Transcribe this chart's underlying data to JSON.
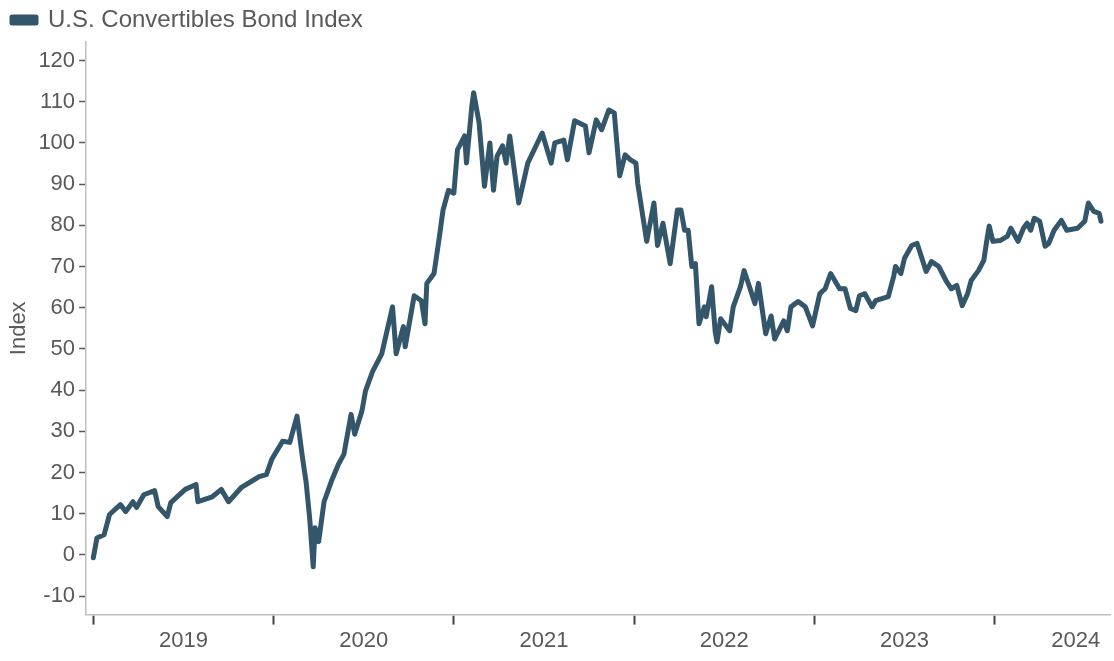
{
  "chart_data": {
    "type": "line",
    "ylabel": "Index",
    "legend": "top left",
    "grid": false,
    "line_style": "solid",
    "marker": "none",
    "xlim": [
      2018.96,
      2024.64
    ],
    "xticks": [
      {
        "value": 2019,
        "label": null
      },
      {
        "value": 2019.5,
        "label": "2019"
      },
      {
        "value": 2020,
        "label": null
      },
      {
        "value": 2020.5,
        "label": "2020"
      },
      {
        "value": 2021,
        "label": null
      },
      {
        "value": 2021.5,
        "label": "2021"
      },
      {
        "value": 2022,
        "label": null
      },
      {
        "value": 2022.5,
        "label": "2022"
      },
      {
        "value": 2023,
        "label": null
      },
      {
        "value": 2023.5,
        "label": "2023"
      },
      {
        "value": 2024,
        "label": null
      },
      {
        "value": 2024.45,
        "label": "2024"
      }
    ],
    "ylim": [
      -14.5,
      124.5
    ],
    "yticks": [
      -10,
      0,
      10,
      20,
      30,
      40,
      50,
      60,
      70,
      80,
      90,
      100,
      110,
      120
    ],
    "series": [
      {
        "name": "U.S. Convertibles Bond Index",
        "color": "#34566b",
        "x": [
          2019.0,
          2019.02,
          2019.06,
          2019.09,
          2019.15,
          2019.18,
          2019.22,
          2019.24,
          2019.28,
          2019.34,
          2019.36,
          2019.41,
          2019.43,
          2019.51,
          2019.57,
          2019.58,
          2019.66,
          2019.71,
          2019.75,
          2019.82,
          2019.92,
          2019.96,
          2019.99,
          2020.05,
          2020.09,
          2020.13,
          2020.16,
          2020.18,
          2020.2,
          2020.22,
          2020.23,
          2020.25,
          2020.28,
          2020.32,
          2020.36,
          2020.39,
          2020.43,
          2020.45,
          2020.49,
          2020.51,
          2020.55,
          2020.6,
          2020.66,
          2020.68,
          2020.72,
          2020.73,
          2020.78,
          2020.82,
          2020.84,
          2020.85,
          2020.89,
          2020.92,
          2020.94,
          2020.97,
          2021.0,
          2021.02,
          2021.06,
          2021.07,
          2021.1,
          2021.11,
          2021.14,
          2021.17,
          2021.2,
          2021.22,
          2021.24,
          2021.27,
          2021.29,
          2021.31,
          2021.36,
          2021.41,
          2021.49,
          2021.54,
          2021.56,
          2021.61,
          2021.63,
          2021.67,
          2021.73,
          2021.75,
          2021.79,
          2021.82,
          2021.86,
          2021.89,
          2021.92,
          2021.95,
          2021.98,
          2022.01,
          2022.02,
          2022.07,
          2022.11,
          2022.13,
          2022.16,
          2022.2,
          2022.24,
          2022.26,
          2022.28,
          2022.3,
          2022.32,
          2022.34,
          2022.36,
          2022.39,
          2022.4,
          2022.43,
          2022.45,
          2022.46,
          2022.48,
          2022.53,
          2022.55,
          2022.59,
          2022.61,
          2022.64,
          2022.67,
          2022.69,
          2022.73,
          2022.76,
          2022.78,
          2022.83,
          2022.85,
          2022.87,
          2022.91,
          2022.95,
          2022.99,
          2023.03,
          2023.06,
          2023.09,
          2023.14,
          2023.17,
          2023.2,
          2023.23,
          2023.25,
          2023.28,
          2023.32,
          2023.34,
          2023.41,
          2023.44,
          2023.45,
          2023.48,
          2023.5,
          2023.54,
          2023.57,
          2023.62,
          2023.65,
          2023.69,
          2023.73,
          2023.76,
          2023.79,
          2023.82,
          2023.85,
          2023.87,
          2023.91,
          2023.94,
          2023.96,
          2023.97,
          2023.99,
          2024.03,
          2024.07,
          2024.09,
          2024.13,
          2024.16,
          2024.18,
          2024.2,
          2024.22,
          2024.25,
          2024.28,
          2024.3,
          2024.33,
          2024.37,
          2024.4,
          2024.46,
          2024.5,
          2024.52,
          2024.55,
          2024.58,
          2024.59
        ],
        "values": [
          -0.7,
          4.1,
          4.9,
          9.8,
          12.2,
          10.5,
          12.9,
          11.5,
          14.6,
          15.6,
          11.7,
          9.3,
          12.7,
          15.9,
          17.1,
          12.9,
          14.1,
          15.9,
          12.9,
          16.3,
          19.0,
          19.5,
          23.2,
          27.6,
          27.3,
          33.7,
          23.7,
          17.8,
          9.0,
          -2.9,
          6.6,
          3.2,
          12.9,
          17.8,
          22.0,
          24.4,
          34.1,
          29.3,
          34.9,
          39.8,
          44.6,
          48.8,
          60.2,
          48.8,
          55.4,
          50.5,
          62.9,
          61.7,
          56.1,
          65.9,
          68.3,
          77.3,
          83.7,
          88.5,
          87.8,
          98.3,
          101.7,
          95.1,
          109.0,
          112.2,
          104.9,
          89.5,
          100.0,
          88.5,
          96.8,
          99.3,
          95.1,
          101.7,
          85.4,
          95.1,
          102.4,
          95.1,
          100.0,
          100.7,
          95.9,
          105.4,
          104.1,
          97.6,
          105.6,
          103.2,
          108.0,
          107.3,
          92.0,
          97.1,
          95.9,
          95.1,
          90.2,
          76.1,
          85.4,
          75.1,
          80.5,
          70.7,
          83.7,
          83.7,
          78.8,
          78.8,
          70.0,
          70.7,
          56.1,
          60.2,
          57.8,
          65.1,
          54.1,
          51.7,
          57.3,
          54.4,
          60.2,
          65.1,
          69.0,
          65.1,
          61.0,
          65.9,
          53.7,
          58.0,
          52.4,
          56.8,
          54.4,
          60.2,
          61.5,
          60.2,
          55.6,
          63.4,
          64.6,
          68.3,
          64.6,
          64.6,
          59.8,
          59.3,
          62.9,
          63.4,
          60.2,
          61.7,
          62.7,
          67.6,
          70.0,
          68.3,
          72.0,
          75.1,
          75.6,
          68.8,
          71.2,
          70.0,
          66.6,
          64.6,
          65.4,
          60.5,
          63.4,
          66.6,
          69.0,
          71.5,
          77.3,
          79.8,
          76.1,
          76.3,
          77.3,
          79.3,
          76.1,
          79.3,
          80.5,
          78.8,
          81.7,
          81.0,
          74.9,
          75.6,
          78.8,
          81.2,
          78.8,
          79.3,
          81.0,
          85.4,
          83.4,
          82.9,
          81.0
        ]
      }
    ]
  }
}
